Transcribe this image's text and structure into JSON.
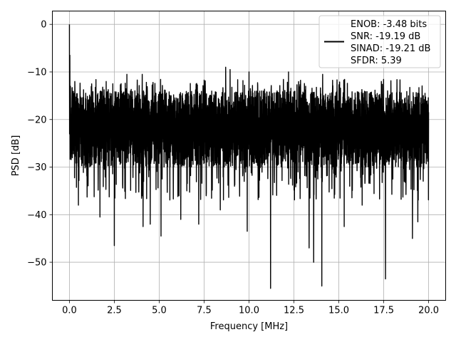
{
  "chart_data": {
    "type": "line",
    "title": "",
    "xlabel": "Frequency [MHz]",
    "ylabel": "PSD [dB]",
    "xlim": [
      -0.95,
      20.95
    ],
    "ylim": [
      -58,
      2.8
    ],
    "xticks": [
      0.0,
      2.5,
      5.0,
      7.5,
      10.0,
      12.5,
      15.0,
      17.5,
      20.0
    ],
    "xtick_labels": [
      "0.0",
      "2.5",
      "5.0",
      "7.5",
      "10.0",
      "12.5",
      "15.0",
      "17.5",
      "20.0"
    ],
    "yticks": [
      0,
      -10,
      -20,
      -30,
      -40,
      -50
    ],
    "ytick_labels": [
      "0",
      "−10",
      "−20",
      "−30",
      "−40",
      "−50"
    ],
    "grid": true,
    "legend_position": "top-right",
    "legend_lines": [
      "ENOB: -3.48 bits",
      "SNR: -19.19 dB",
      "SINAD: -19.21 dB",
      "SFDR: 5.39"
    ],
    "series": [
      {
        "color": "#000000",
        "x_range": [
          0,
          20
        ],
        "noise": {
          "center": -21,
          "typical_top": -14,
          "typical_bottom": -30
        },
        "peaks": [
          [
            0.0,
            0.0
          ],
          [
            0.02,
            -6.5
          ],
          [
            0.05,
            -13
          ],
          [
            8.7,
            -9
          ],
          [
            8.95,
            -9.5
          ],
          [
            10.0,
            -10
          ],
          [
            12.2,
            -10
          ],
          [
            4.05,
            -10.5
          ],
          [
            14.1,
            -10.5
          ],
          [
            3.2,
            -10.5
          ],
          [
            2.05,
            -12
          ],
          [
            0.3,
            -12
          ]
        ],
        "dips": [
          [
            0.5,
            -38
          ],
          [
            1.7,
            -40.5
          ],
          [
            2.5,
            -46.5
          ],
          [
            4.1,
            -42.5
          ],
          [
            4.5,
            -42
          ],
          [
            5.1,
            -44.5
          ],
          [
            6.2,
            -41
          ],
          [
            7.2,
            -42
          ],
          [
            8.4,
            -39
          ],
          [
            9.9,
            -43.5
          ],
          [
            11.2,
            -55.5
          ],
          [
            13.35,
            -47
          ],
          [
            13.6,
            -50
          ],
          [
            14.05,
            -55
          ],
          [
            15.3,
            -42.5
          ],
          [
            16.3,
            -38
          ],
          [
            17.6,
            -53.5
          ],
          [
            19.1,
            -45
          ],
          [
            19.4,
            -41.5
          ]
        ]
      }
    ]
  }
}
